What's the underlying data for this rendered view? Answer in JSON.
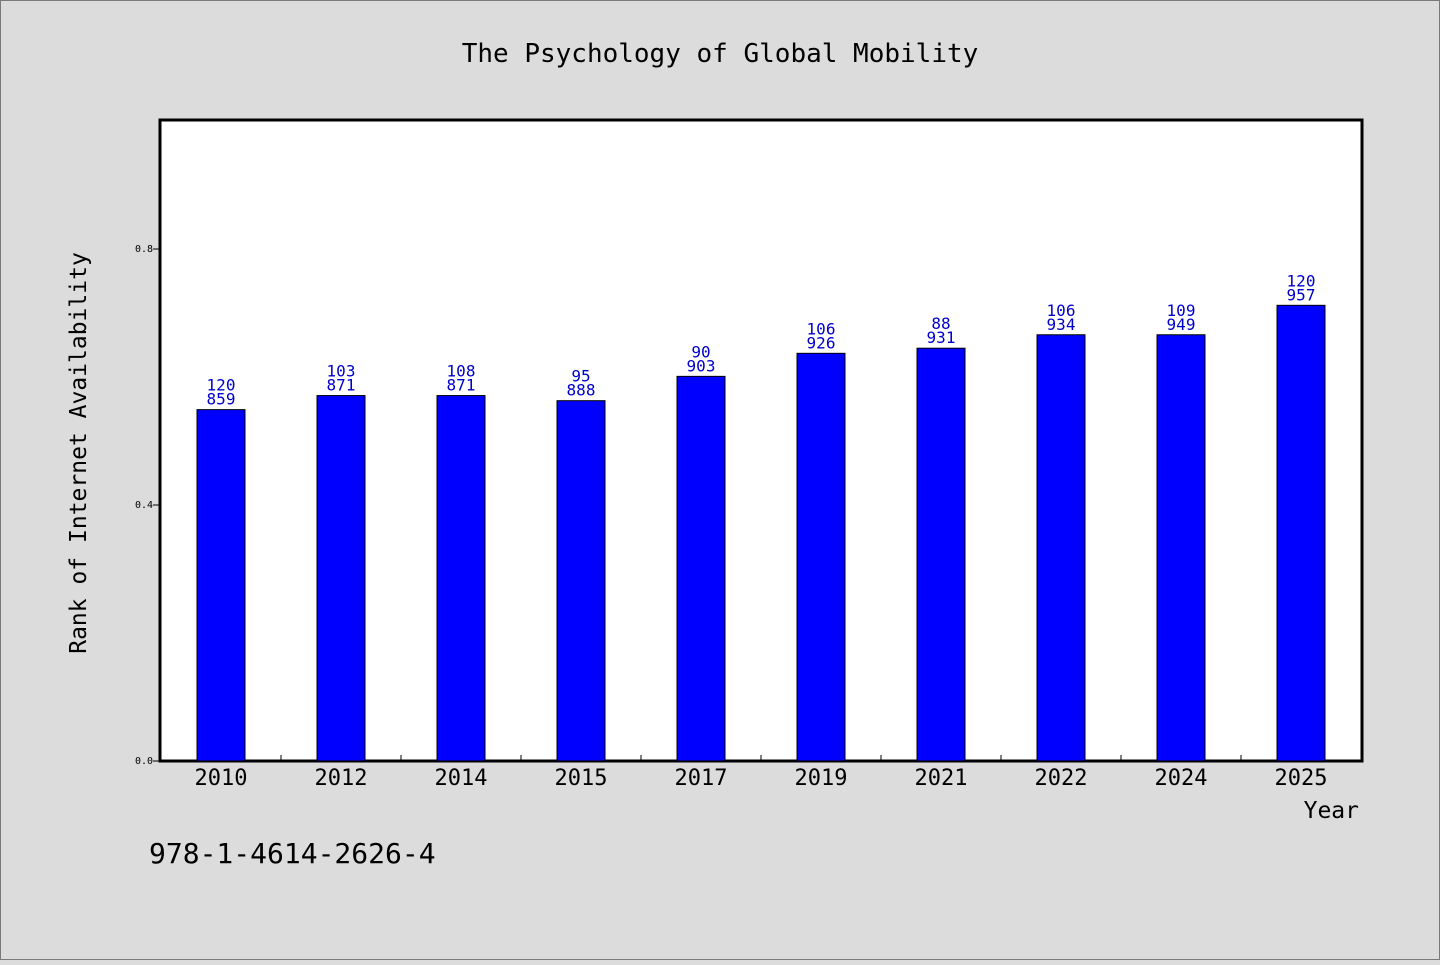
{
  "chart_data": {
    "type": "bar",
    "title": "The Psychology of Global Mobility",
    "xlabel": "Year",
    "ylabel": "Rank of Internet Availability",
    "categories": [
      "2010",
      "2012",
      "2014",
      "2015",
      "2017",
      "2019",
      "2021",
      "2022",
      "2024",
      "2025"
    ],
    "values": [
      0.549,
      0.571,
      0.571,
      0.563,
      0.601,
      0.637,
      0.645,
      0.666,
      0.666,
      0.712
    ],
    "label_top": [
      "120",
      "103",
      "108",
      "95",
      "90",
      "106",
      "88",
      "106",
      "109",
      "120"
    ],
    "label_bottom": [
      "859",
      "871",
      "871",
      "888",
      "903",
      "926",
      "931",
      "934",
      "949",
      "957"
    ],
    "ylim": [
      0,
      1.0
    ],
    "yticks": [
      "0.0",
      "0.4",
      "0.8"
    ],
    "ytick_values": [
      0,
      0.4,
      0.8
    ],
    "grid": false,
    "bar_color": "#0000ff",
    "label_color": "#0000cc",
    "background": "#dcdcdc",
    "plot_background": "#ffffff"
  },
  "footer": {
    "isbn": "978-1-4614-2626-4"
  }
}
